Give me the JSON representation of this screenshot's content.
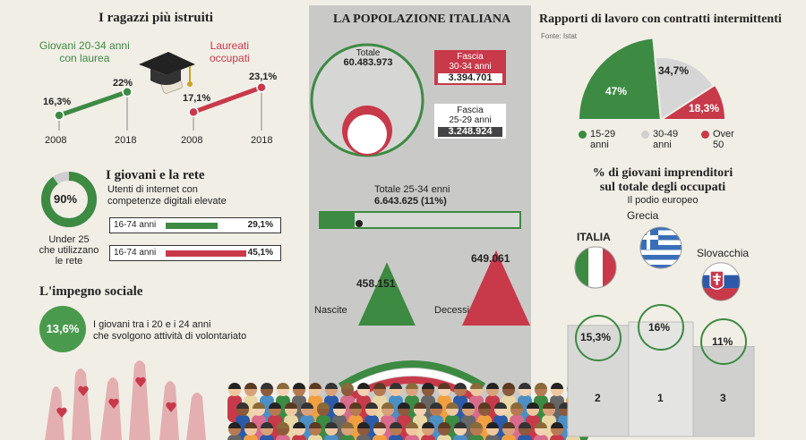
{
  "left": {
    "title": "I ragazzi più istruiti",
    "graduates": {
      "label_line1": "Giovani 20-34 anni",
      "label_line2": "con laurea",
      "years": [
        "2008",
        "2018"
      ],
      "values": [
        16.3,
        22
      ],
      "value_labels": [
        "16,3%",
        "22%"
      ],
      "color": "#3d8a43"
    },
    "employed": {
      "label_line1": "Laureati",
      "label_line2": "occupati",
      "years": [
        "2008",
        "2018"
      ],
      "values": [
        17.1,
        23.1
      ],
      "value_labels": [
        "17,1%",
        "23,1%"
      ],
      "color": "#c8394a"
    },
    "net": {
      "title": "I giovani e la rete",
      "donut_value": 90,
      "donut_label": "90%",
      "donut_caption_1": "Under 25",
      "donut_caption_2": "che utilizzano",
      "donut_caption_3": "le rete",
      "subtitle_1": "Utenti di internet con",
      "subtitle_2": "competenze digitali elevate",
      "bars": [
        {
          "label": "16-74 anni",
          "value": 29.1,
          "value_label": "29,1%",
          "color": "#3d8a43"
        },
        {
          "label": "16-74 anni",
          "value": 45.1,
          "value_label": "45,1%",
          "color": "#c8394a"
        }
      ]
    },
    "social": {
      "title": "L'impegno sociale",
      "value_label": "13,6%",
      "text_1": "I giovani tra i 20 e i 24 anni",
      "text_2": "che svolgono attività di volontariato"
    }
  },
  "center": {
    "title": "LA POPOLAZIONE ITALIANA",
    "total_label": "Totale",
    "total_value": "60.483.973",
    "fascia30_l1": "Fascia",
    "fascia30_l2": "30-34 anni",
    "fascia30_value": "3.394.701",
    "fascia25_l1": "Fascia",
    "fascia25_l2": "25-29 anni",
    "fascia25_value": "3.248.924",
    "total2534_label": "Totale 25-34 enni",
    "total2534_value": "6.643.625 (11%)",
    "share_2534": 11,
    "births_label": "Nascite",
    "births_value": "458.151",
    "births": 458151,
    "deaths_label": "Decessi",
    "deaths_value": "649.061",
    "deaths": 649061
  },
  "right": {
    "title": "Rapporti di lavoro con contratti intermittenti",
    "source": "Fonte: Istat",
    "chart_data": {
      "type": "pie",
      "categories": [
        "15-29 anni",
        "30-49 anni",
        "Over 50"
      ],
      "values": [
        47,
        34.7,
        18.3
      ],
      "value_labels": [
        "47%",
        "34,7%",
        "18,3%"
      ],
      "colors": [
        "#3d8a43",
        "#d6d6d6",
        "#c8394a"
      ]
    },
    "legend": [
      {
        "l1": "15-29",
        "l2": "anni",
        "color": "#3d8a43"
      },
      {
        "l1": "30-49",
        "l2": "anni",
        "color": "#d0d0d0"
      },
      {
        "l1": "Over",
        "l2": "50",
        "color": "#c8394a"
      }
    ],
    "podium": {
      "title_1": "% di giovani imprenditori",
      "title_2": "sul totale degli occupati",
      "subtitle": "Il podio europeo",
      "entries": [
        {
          "country": "ITALIA",
          "value": 15.3,
          "value_label": "15,3%",
          "rank": "2"
        },
        {
          "country": "Grecia",
          "value": 16,
          "value_label": "16%",
          "rank": "1"
        },
        {
          "country": "Slovacchia",
          "value": 11,
          "value_label": "11%",
          "rank": "3"
        }
      ]
    }
  }
}
